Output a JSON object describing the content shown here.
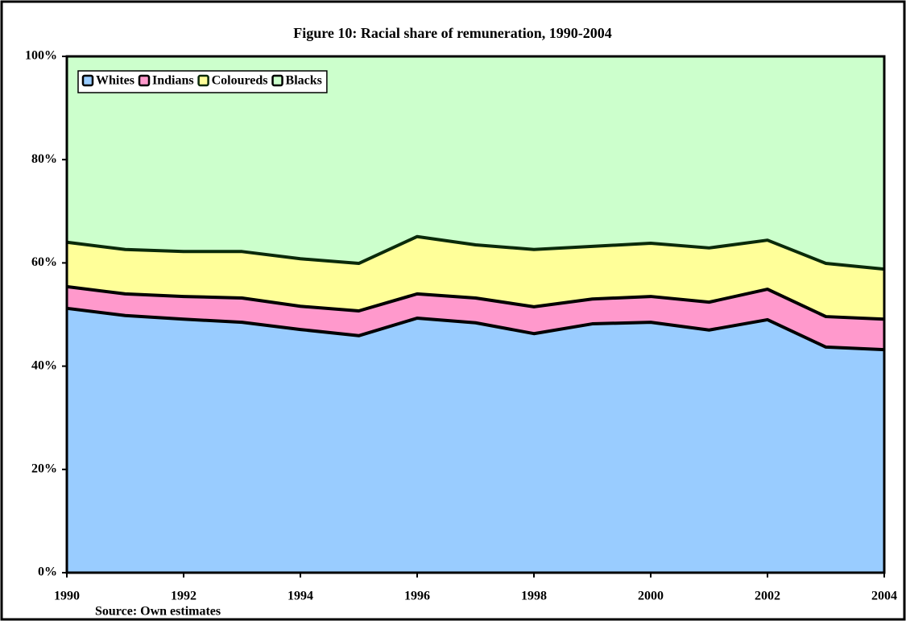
{
  "chart_data": {
    "type": "stacked_area",
    "title": "Figure 10: Racial share of remuneration, 1990-2004",
    "note": "Source: Own estimates",
    "x": [
      1990,
      1991,
      1992,
      1993,
      1994,
      1995,
      1996,
      1997,
      1998,
      1999,
      2000,
      2001,
      2002,
      2003,
      2004
    ],
    "series": [
      {
        "name": "Whites",
        "color": "#99ccff",
        "values": [
          51.2,
          49.8,
          49.1,
          48.5,
          47.1,
          45.9,
          49.3,
          48.4,
          46.3,
          48.2,
          48.5,
          47.0,
          49.0,
          43.7,
          43.2
        ]
      },
      {
        "name": "Indians",
        "color": "#ff99cc",
        "values": [
          4.2,
          4.2,
          4.4,
          4.7,
          4.5,
          4.8,
          4.7,
          4.8,
          5.2,
          4.8,
          5.0,
          5.4,
          5.9,
          5.9,
          5.9
        ]
      },
      {
        "name": "Coloureds",
        "color": "#ffff99",
        "values": [
          8.6,
          8.6,
          8.7,
          9.0,
          9.2,
          9.2,
          11.1,
          10.3,
          11.1,
          10.2,
          10.3,
          10.5,
          9.5,
          10.3,
          9.7
        ]
      },
      {
        "name": "Blacks",
        "color": "#ccffcc",
        "values": [
          36.0,
          37.4,
          37.8,
          37.8,
          39.2,
          40.1,
          34.9,
          36.5,
          37.4,
          36.8,
          36.2,
          37.1,
          35.6,
          40.1,
          41.2
        ]
      }
    ],
    "xlim": [
      1990,
      2004
    ],
    "xticks": [
      1990,
      1992,
      1994,
      1996,
      1998,
      2000,
      2002,
      2004
    ],
    "ylim": [
      0,
      100
    ],
    "yticks": [
      {
        "value": 0,
        "label": "0%"
      },
      {
        "value": 20,
        "label": "20%"
      },
      {
        "value": 40,
        "label": "40%"
      },
      {
        "value": 60,
        "label": "60%"
      },
      {
        "value": 80,
        "label": "80%"
      },
      {
        "value": 100,
        "label": "100%"
      }
    ],
    "legend": "top-left"
  }
}
